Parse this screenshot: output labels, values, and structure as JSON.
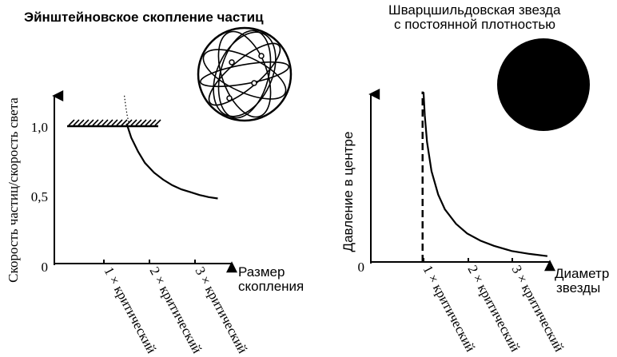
{
  "chart_data": [
    {
      "type": "line",
      "title": "Эйнштейновское скопление частиц",
      "ylabel": "Скорость частиц/скорость света",
      "xlabel": [
        "Размер",
        "скопления"
      ],
      "x_ticks": [
        "1 × критический",
        "2 × критический",
        "3 × критический"
      ],
      "y_ticks": [
        "0",
        "0,5",
        "1,0"
      ],
      "xlim": [
        0,
        4
      ],
      "ylim": [
        0,
        1.25
      ],
      "hatched_limit_y": 1.0,
      "series": [
        {
          "style": "solid",
          "x": [
            1.5,
            1.6,
            1.75,
            1.9,
            2.1,
            2.3,
            2.5,
            2.7,
            2.9,
            3.1,
            3.3,
            3.5
          ],
          "y": [
            1.0,
            0.9,
            0.8,
            0.72,
            0.65,
            0.6,
            0.56,
            0.53,
            0.51,
            0.49,
            0.475,
            0.465
          ]
        },
        {
          "style": "dotted",
          "x": [
            1.45,
            1.48,
            1.51,
            1.55
          ],
          "y": [
            1.2,
            1.12,
            1.06,
            1.0
          ]
        }
      ],
      "illustration": "particle-cluster-sphere"
    },
    {
      "type": "line",
      "title": [
        "Шварцшильдовская звезда",
        "с постоянной плотностью"
      ],
      "ylabel": "Давление в центре",
      "xlabel": [
        "Диаметр",
        "звезды"
      ],
      "x_ticks": [
        "1 × критический",
        "2 × критический",
        "3 × критический"
      ],
      "y_ticks": [
        "0"
      ],
      "xlim": [
        0,
        4
      ],
      "ylim": [
        0,
        12
      ],
      "dashed_asymptote_x": 1.0,
      "series": [
        {
          "style": "solid",
          "x": [
            1.02,
            1.05,
            1.1,
            1.2,
            1.35,
            1.5,
            1.75,
            2.0,
            2.3,
            2.6,
            3.0,
            3.4,
            3.8
          ],
          "y": [
            11.6,
            10.0,
            8.2,
            6.2,
            4.6,
            3.6,
            2.6,
            1.95,
            1.45,
            1.1,
            0.75,
            0.55,
            0.4
          ]
        }
      ],
      "illustration": "dark-star-disk"
    }
  ]
}
